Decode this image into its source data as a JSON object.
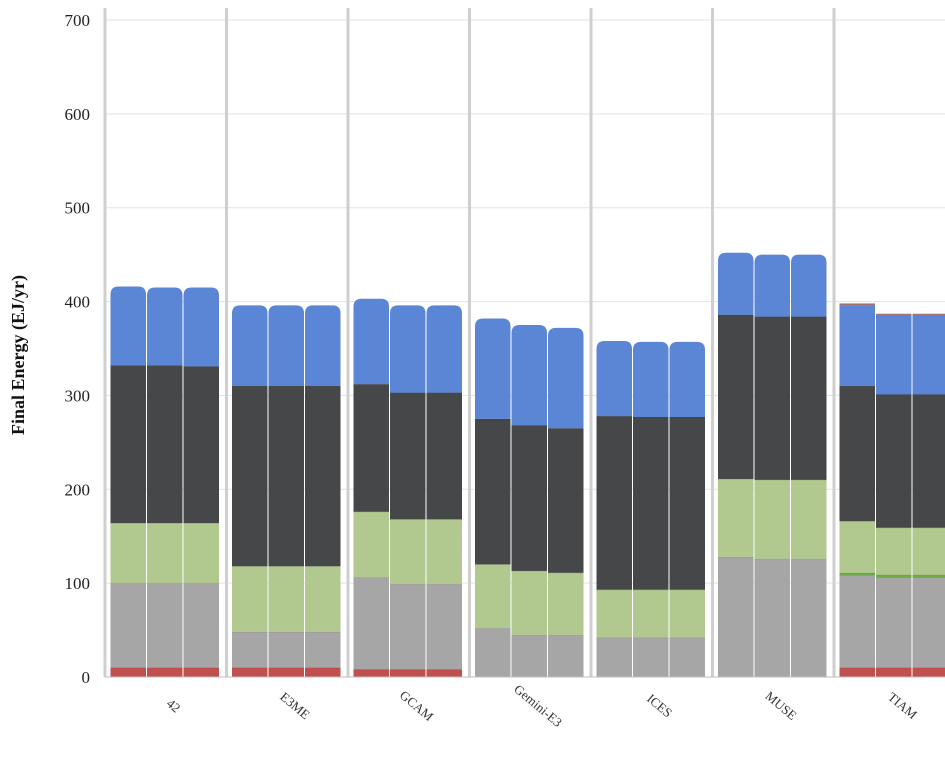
{
  "chart_data": {
    "type": "bar",
    "stacked": true,
    "ylabel": "Final Energy (EJ/yr)",
    "ylim": [
      0,
      700
    ],
    "yticks": [
      "0",
      "100",
      "200",
      "300",
      "400",
      "500",
      "600",
      "700"
    ],
    "grid": true,
    "categories": [
      "42",
      "E3ME",
      "GCAM",
      "Gemini-E3",
      "ICES",
      "MUSE",
      "TIAM"
    ],
    "bars_per_category": 3,
    "series": [
      {
        "color": "#c0504d",
        "values": [
          [
            10,
            10,
            10
          ],
          [
            10,
            10,
            10
          ],
          [
            8,
            8,
            8
          ],
          [
            0,
            0,
            0
          ],
          [
            0,
            0,
            0
          ],
          [
            0,
            0,
            0
          ],
          [
            10,
            10,
            10
          ]
        ]
      },
      {
        "color": "#a6a6a6",
        "values": [
          [
            90,
            90,
            90
          ],
          [
            38,
            38,
            38
          ],
          [
            98,
            91,
            91
          ],
          [
            52,
            45,
            45
          ],
          [
            42,
            42,
            42
          ],
          [
            128,
            126,
            126
          ],
          [
            98,
            96,
            96
          ]
        ]
      },
      {
        "color": "#70ad47",
        "values": [
          [
            0,
            0,
            0
          ],
          [
            0,
            0,
            0
          ],
          [
            0,
            0,
            0
          ],
          [
            0,
            0,
            0
          ],
          [
            0,
            0,
            0
          ],
          [
            0,
            0,
            0
          ],
          [
            3,
            3,
            3
          ]
        ]
      },
      {
        "color": "#b1c98f",
        "values": [
          [
            64,
            64,
            64
          ],
          [
            70,
            70,
            70
          ],
          [
            70,
            69,
            69
          ],
          [
            68,
            68,
            66
          ],
          [
            51,
            51,
            51
          ],
          [
            83,
            84,
            84
          ],
          [
            55,
            50,
            50
          ]
        ]
      },
      {
        "color": "#454749",
        "values": [
          [
            168,
            168,
            167
          ],
          [
            192,
            192,
            192
          ],
          [
            136,
            135,
            135
          ],
          [
            155,
            155,
            154
          ],
          [
            185,
            184,
            184
          ],
          [
            175,
            174,
            174
          ],
          [
            144,
            142,
            142
          ]
        ]
      },
      {
        "color": "#5b86d6",
        "values": [
          [
            84,
            83,
            84
          ],
          [
            86,
            86,
            86
          ],
          [
            91,
            93,
            93
          ],
          [
            107,
            107,
            107
          ],
          [
            80,
            80,
            80
          ],
          [
            66,
            66,
            66
          ],
          [
            86,
            84,
            84
          ]
        ]
      },
      {
        "color": "#a07070",
        "values": [
          [
            0,
            0,
            0
          ],
          [
            0,
            0,
            0
          ],
          [
            0,
            0,
            0
          ],
          [
            0,
            0,
            0
          ],
          [
            0,
            0,
            0
          ],
          [
            0,
            0,
            0
          ],
          [
            2,
            2,
            2
          ]
        ]
      }
    ]
  }
}
